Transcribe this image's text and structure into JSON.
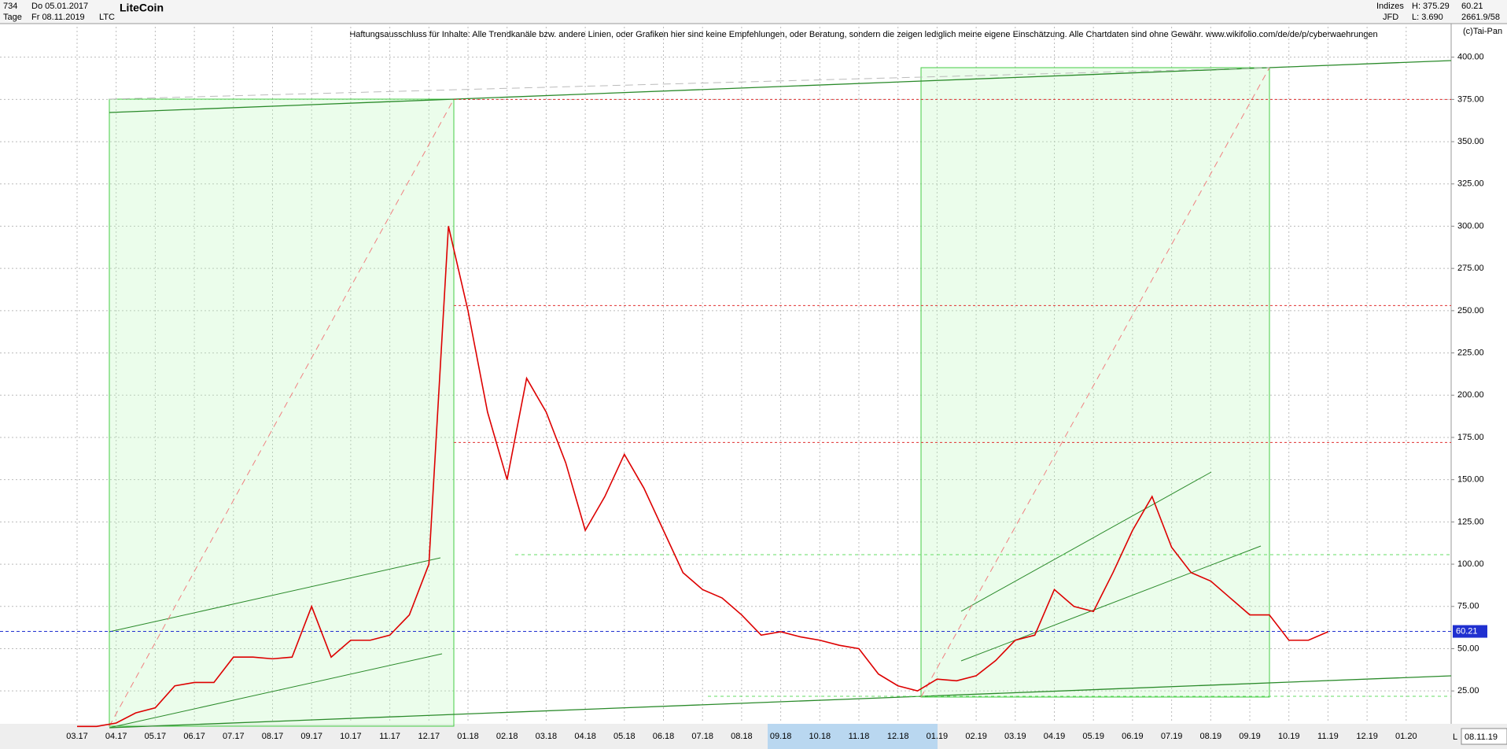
{
  "header": {
    "count": "734",
    "start_date": "Do 05.01.2017",
    "period": "Tage",
    "end_date": "Fr 08.11.2019",
    "symbol": "LTC",
    "source": "Indizes",
    "broker": "JFD",
    "high": "H: 375.29",
    "low": "L: 3.690",
    "stats": "2661.9/58",
    "copyright": "(c)Tai-Pan",
    "date_box": "08.11.19",
    "scale_mode": "L"
  },
  "chart_data": {
    "type": "line",
    "title": "LiteCoin",
    "subtitle": "Haftungsausschluss für Inhalte: Alle Trendkanäle bzw. andere Linien, oder Grafiken hier sind keine Empfehlungen, oder Beratung, sondern die zeigen lediglich meine eigene Einschätzung. Alle Chartdaten sind ohne Gewähr.  www.wikifolio.com/de/de/p/cyberwaehrungen",
    "categories": [
      "03.17",
      null,
      "04.17",
      null,
      "05.17",
      null,
      "06.17",
      null,
      "07.17",
      null,
      "08.17",
      null,
      "09.17",
      null,
      "10.17",
      null,
      "11.17",
      null,
      "12.17",
      null,
      "01.18",
      null,
      "02.18",
      null,
      "03.18",
      null,
      "04.18",
      null,
      "05.18",
      null,
      "06.18",
      null,
      "07.18",
      null,
      "08.18",
      null,
      "09.18",
      null,
      "10.18",
      null,
      "11.18",
      null,
      "12.18",
      null,
      "01.19",
      null,
      "02.19",
      null,
      "03.19",
      null,
      "04.19",
      null,
      "05.19",
      null,
      "06.19",
      null,
      "07.19",
      null,
      "08.19",
      null,
      "09.19",
      null,
      "10.19",
      null,
      "11.19",
      null,
      "12.19",
      null,
      "01.20",
      null
    ],
    "series": [
      {
        "name": "LTC",
        "color": "#dd0000",
        "values": [
          4,
          4,
          6,
          12,
          15,
          28,
          30,
          30,
          45,
          45,
          44,
          45,
          75,
          45,
          55,
          55,
          58,
          70,
          100,
          300,
          250,
          190,
          150,
          210,
          190,
          160,
          120,
          140,
          165,
          145,
          120,
          95,
          85,
          80,
          70,
          58,
          60,
          57,
          55,
          52,
          50,
          35,
          28,
          25,
          32,
          31,
          34,
          43,
          55,
          58,
          85,
          75,
          72,
          95,
          120,
          140,
          110,
          95,
          90,
          80,
          70,
          70,
          55,
          55,
          60,
          null,
          null,
          null,
          null,
          null
        ]
      }
    ],
    "last_price": 60.21,
    "resistance_levels": [
      375,
      253,
      172
    ],
    "ylim": [
      6,
      418
    ],
    "yticks": [
      {
        "value": 25,
        "label": "25.00"
      },
      {
        "value": 50,
        "label": "50.00"
      },
      {
        "value": 75,
        "label": "75.00"
      },
      {
        "value": 100,
        "label": "100.00"
      },
      {
        "value": 125,
        "label": "125.00"
      },
      {
        "value": 150,
        "label": "150.00"
      },
      {
        "value": 175,
        "label": "175.00"
      },
      {
        "value": 200,
        "label": "200.00"
      },
      {
        "value": 225,
        "label": "225.00"
      },
      {
        "value": 250,
        "label": "250.00"
      },
      {
        "value": 275,
        "label": "275.00"
      },
      {
        "value": 300,
        "label": "300.00"
      },
      {
        "value": 325,
        "label": "325.00"
      },
      {
        "value": 350,
        "label": "350.00"
      },
      {
        "value": 375,
        "label": "375.00"
      },
      {
        "value": 400,
        "label": "400.00"
      }
    ],
    "grid": true
  }
}
